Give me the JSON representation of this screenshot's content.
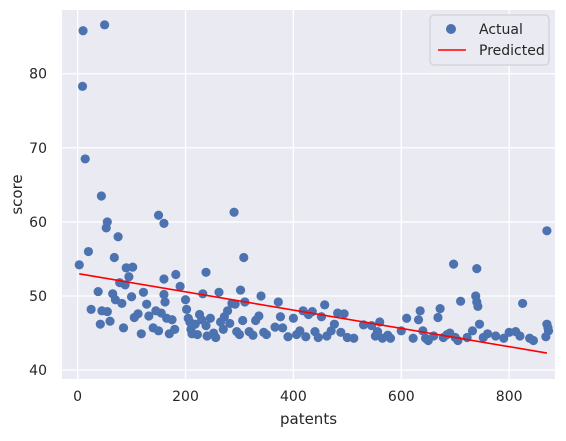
{
  "chart_data": {
    "type": "scatter",
    "title": "",
    "xlabel": "patents",
    "ylabel": "score",
    "xlim": [
      -29,
      885
    ],
    "ylim": [
      38.8,
      88.6
    ],
    "x_ticks": [
      0,
      200,
      400,
      600,
      800
    ],
    "y_ticks": [
      40,
      50,
      60,
      70,
      80
    ],
    "grid": true,
    "legend_position": "upper right",
    "colors": {
      "background": "#eaeaf2",
      "grid": "#ffffff",
      "points": "#4c72b0",
      "line": "#ff0000"
    },
    "series": [
      {
        "name": "Actual",
        "kind": "scatter",
        "points": [
          [
            10,
            85.8
          ],
          [
            50,
            86.6
          ],
          [
            9,
            78.3
          ],
          [
            14,
            68.5
          ],
          [
            44,
            63.5
          ],
          [
            55,
            60.0
          ],
          [
            53,
            59.2
          ],
          [
            75,
            58.0
          ],
          [
            150,
            60.9
          ],
          [
            160,
            59.8
          ],
          [
            290,
            61.3
          ],
          [
            870,
            58.8
          ],
          [
            3,
            54.2
          ],
          [
            20,
            56.0
          ],
          [
            68,
            55.2
          ],
          [
            308,
            55.2
          ],
          [
            697,
            54.3
          ],
          [
            740,
            53.7
          ],
          [
            90,
            53.8
          ],
          [
            102,
            53.9
          ],
          [
            95,
            52.6
          ],
          [
            160,
            52.3
          ],
          [
            182,
            52.9
          ],
          [
            238,
            53.2
          ],
          [
            78,
            51.8
          ],
          [
            88,
            51.5
          ],
          [
            190,
            51.3
          ],
          [
            25,
            48.2
          ],
          [
            38,
            50.6
          ],
          [
            45,
            48.0
          ],
          [
            55,
            47.9
          ],
          [
            60,
            46.6
          ],
          [
            42,
            46.2
          ],
          [
            65,
            50.3
          ],
          [
            70,
            49.5
          ],
          [
            82,
            49.0
          ],
          [
            85,
            45.7
          ],
          [
            100,
            49.9
          ],
          [
            105,
            47.1
          ],
          [
            112,
            47.6
          ],
          [
            118,
            44.9
          ],
          [
            122,
            50.5
          ],
          [
            128,
            48.9
          ],
          [
            132,
            47.3
          ],
          [
            140,
            45.7
          ],
          [
            145,
            48.0
          ],
          [
            150,
            45.3
          ],
          [
            155,
            47.7
          ],
          [
            160,
            50.2
          ],
          [
            162,
            49.2
          ],
          [
            165,
            47.0
          ],
          [
            170,
            44.9
          ],
          [
            175,
            46.8
          ],
          [
            180,
            45.5
          ],
          [
            200,
            49.5
          ],
          [
            202,
            48.2
          ],
          [
            205,
            47.0
          ],
          [
            208,
            46.5
          ],
          [
            210,
            45.5
          ],
          [
            212,
            44.9
          ],
          [
            218,
            46.2
          ],
          [
            222,
            44.8
          ],
          [
            226,
            47.5
          ],
          [
            230,
            46.8
          ],
          [
            232,
            50.3
          ],
          [
            238,
            46.0
          ],
          [
            240,
            44.6
          ],
          [
            246,
            47.0
          ],
          [
            252,
            45.0
          ],
          [
            256,
            44.4
          ],
          [
            262,
            50.5
          ],
          [
            265,
            46.5
          ],
          [
            270,
            45.5
          ],
          [
            272,
            47.2
          ],
          [
            278,
            48.0
          ],
          [
            282,
            46.3
          ],
          [
            286,
            49.0
          ],
          [
            292,
            48.9
          ],
          [
            295,
            45.2
          ],
          [
            300,
            44.8
          ],
          [
            302,
            50.8
          ],
          [
            306,
            46.7
          ],
          [
            310,
            49.2
          ],
          [
            318,
            45.2
          ],
          [
            325,
            44.7
          ],
          [
            330,
            46.7
          ],
          [
            336,
            47.3
          ],
          [
            340,
            50.0
          ],
          [
            345,
            45.1
          ],
          [
            350,
            44.8
          ],
          [
            366,
            45.8
          ],
          [
            372,
            49.2
          ],
          [
            376,
            47.2
          ],
          [
            380,
            45.7
          ],
          [
            390,
            44.5
          ],
          [
            400,
            47.0
          ],
          [
            406,
            44.8
          ],
          [
            412,
            45.3
          ],
          [
            418,
            48.0
          ],
          [
            423,
            44.5
          ],
          [
            428,
            47.5
          ],
          [
            435,
            47.9
          ],
          [
            440,
            45.2
          ],
          [
            446,
            44.4
          ],
          [
            452,
            47.2
          ],
          [
            458,
            48.8
          ],
          [
            462,
            44.6
          ],
          [
            470,
            45.3
          ],
          [
            476,
            46.2
          ],
          [
            482,
            47.7
          ],
          [
            488,
            45.1
          ],
          [
            494,
            47.6
          ],
          [
            500,
            44.4
          ],
          [
            512,
            44.3
          ],
          [
            530,
            46.1
          ],
          [
            545,
            46.0
          ],
          [
            552,
            44.6
          ],
          [
            556,
            45.2
          ],
          [
            560,
            46.5
          ],
          [
            565,
            44.3
          ],
          [
            575,
            44.7
          ],
          [
            580,
            44.3
          ],
          [
            600,
            45.3
          ],
          [
            610,
            47.0
          ],
          [
            622,
            44.3
          ],
          [
            632,
            46.8
          ],
          [
            635,
            48.0
          ],
          [
            640,
            45.3
          ],
          [
            645,
            44.3
          ],
          [
            650,
            44.0
          ],
          [
            660,
            44.6
          ],
          [
            668,
            47.1
          ],
          [
            672,
            48.3
          ],
          [
            678,
            44.4
          ],
          [
            685,
            44.8
          ],
          [
            690,
            45.0
          ],
          [
            700,
            44.4
          ],
          [
            705,
            44.0
          ],
          [
            710,
            49.3
          ],
          [
            722,
            44.4
          ],
          [
            732,
            45.3
          ],
          [
            738,
            50.0
          ],
          [
            740,
            49.2
          ],
          [
            742,
            48.6
          ],
          [
            745,
            46.2
          ],
          [
            752,
            44.4
          ],
          [
            760,
            44.9
          ],
          [
            775,
            44.6
          ],
          [
            790,
            44.3
          ],
          [
            800,
            45.1
          ],
          [
            812,
            45.2
          ],
          [
            820,
            44.6
          ],
          [
            825,
            49.0
          ],
          [
            838,
            44.3
          ],
          [
            845,
            44.0
          ],
          [
            868,
            44.5
          ],
          [
            870,
            46.2
          ],
          [
            872,
            45.7
          ],
          [
            873,
            45.3
          ]
        ]
      },
      {
        "name": "Predicted",
        "kind": "line",
        "points": [
          [
            3,
            53.0
          ],
          [
            870,
            42.3
          ]
        ]
      }
    ]
  }
}
